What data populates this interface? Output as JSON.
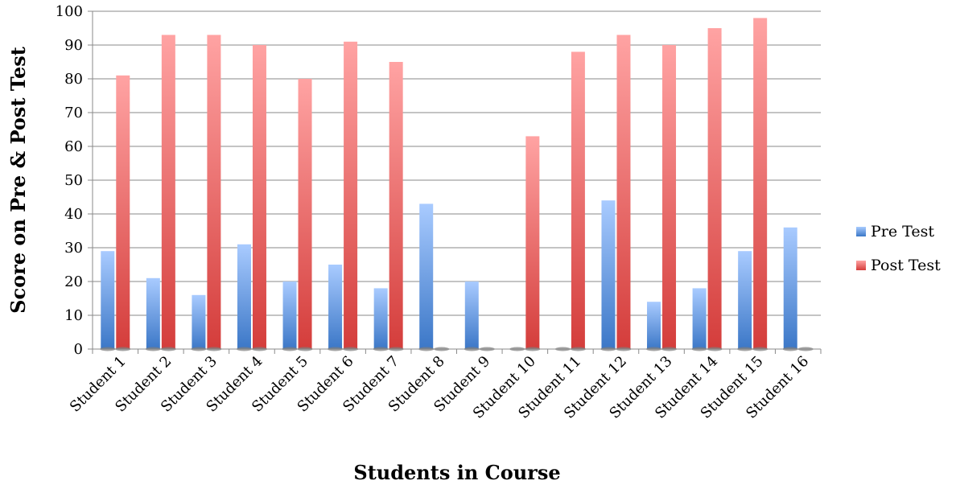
{
  "chart_data": {
    "type": "bar",
    "categories": [
      "Student 1",
      "Student 2",
      "Student 3",
      "Student 4",
      "Student 5",
      "Student 6",
      "Student 7",
      "Student 8",
      "Student 9",
      "Student 10",
      "Student 11",
      "Student 12",
      "Student 13",
      "Student 14",
      "Student 15",
      "Student 16"
    ],
    "series": [
      {
        "name": "Pre Test",
        "values": [
          29,
          21,
          16,
          31,
          20,
          25,
          18,
          43,
          20,
          0,
          0,
          44,
          14,
          18,
          29,
          36
        ],
        "color": "#4f86d0"
      },
      {
        "name": "Post Test",
        "values": [
          81,
          93,
          93,
          90,
          80,
          91,
          85,
          0,
          0,
          63,
          88,
          93,
          90,
          95,
          98,
          0
        ],
        "color": "#d94a47"
      }
    ],
    "title": "",
    "xlabel": "Students in Course",
    "ylabel": "Score on Pre & Post Test",
    "ylim": [
      0,
      100
    ],
    "yticks": [
      0,
      10,
      20,
      30,
      40,
      50,
      60,
      70,
      80,
      90,
      100
    ],
    "grid": true,
    "legend": "right"
  }
}
